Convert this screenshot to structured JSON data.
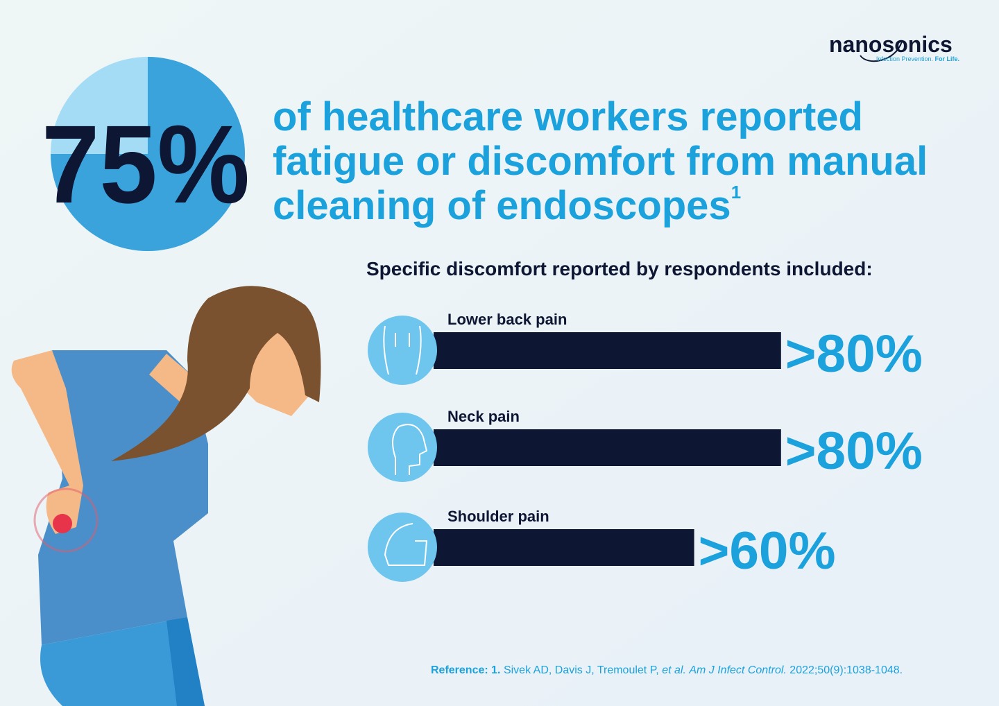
{
  "logo": {
    "name": "nanosonics",
    "tagline": "Infection Prevention.",
    "tagline_strong": "For Life."
  },
  "headline": {
    "value": 75,
    "value_label": "75%",
    "lines": [
      "of healthcare workers reported",
      "fatigue or discomfort from manual",
      "cleaning of endoscopes"
    ],
    "footnote": "1"
  },
  "subtitle": "Specific discomfort reported by respondents included:",
  "bars": [
    {
      "label": "Lower back pain",
      "value": 80,
      "value_label": ">80%"
    },
    {
      "label": "Neck pain",
      "value": 80,
      "value_label": ">80%"
    },
    {
      "label": "Shoulder pain",
      "value": 60,
      "value_label": ">60%"
    }
  ],
  "reference": {
    "prefix": "Reference:",
    "number": "1.",
    "authors": "Sivek AD, Davis J, Tremoulet P,",
    "etal": "et al.",
    "journal": "Am J Infect Control.",
    "citation": "2022;50(9):1038-1048."
  }
}
